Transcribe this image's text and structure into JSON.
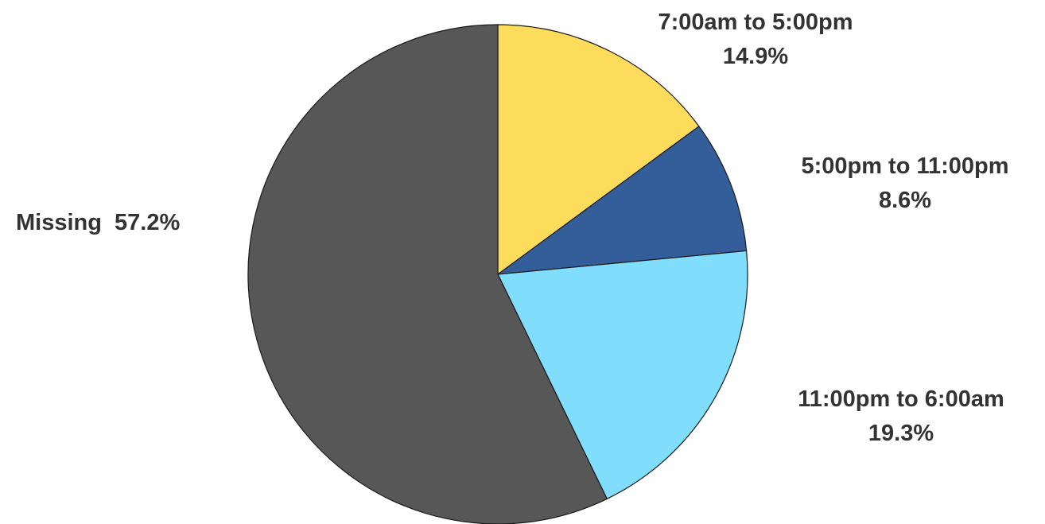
{
  "chart_data": {
    "type": "pie",
    "slices": [
      {
        "label": "7:00am to 5:00pm",
        "value": 14.9,
        "value_label": "14.9%",
        "color": "#FDDC5C"
      },
      {
        "label": "5:00pm to 11:00pm",
        "value": 8.6,
        "value_label": "8.6%",
        "color": "#345E99"
      },
      {
        "label": "11:00pm to 6:00am",
        "value": 19.3,
        "value_label": "19.3%",
        "color": "#80DEFC"
      },
      {
        "label": "Missing",
        "value": 57.2,
        "value_label": "57.2%",
        "color": "#575757"
      }
    ],
    "start_angle": "12 o'clock",
    "direction": "clockwise",
    "legend": "none",
    "title": ""
  }
}
